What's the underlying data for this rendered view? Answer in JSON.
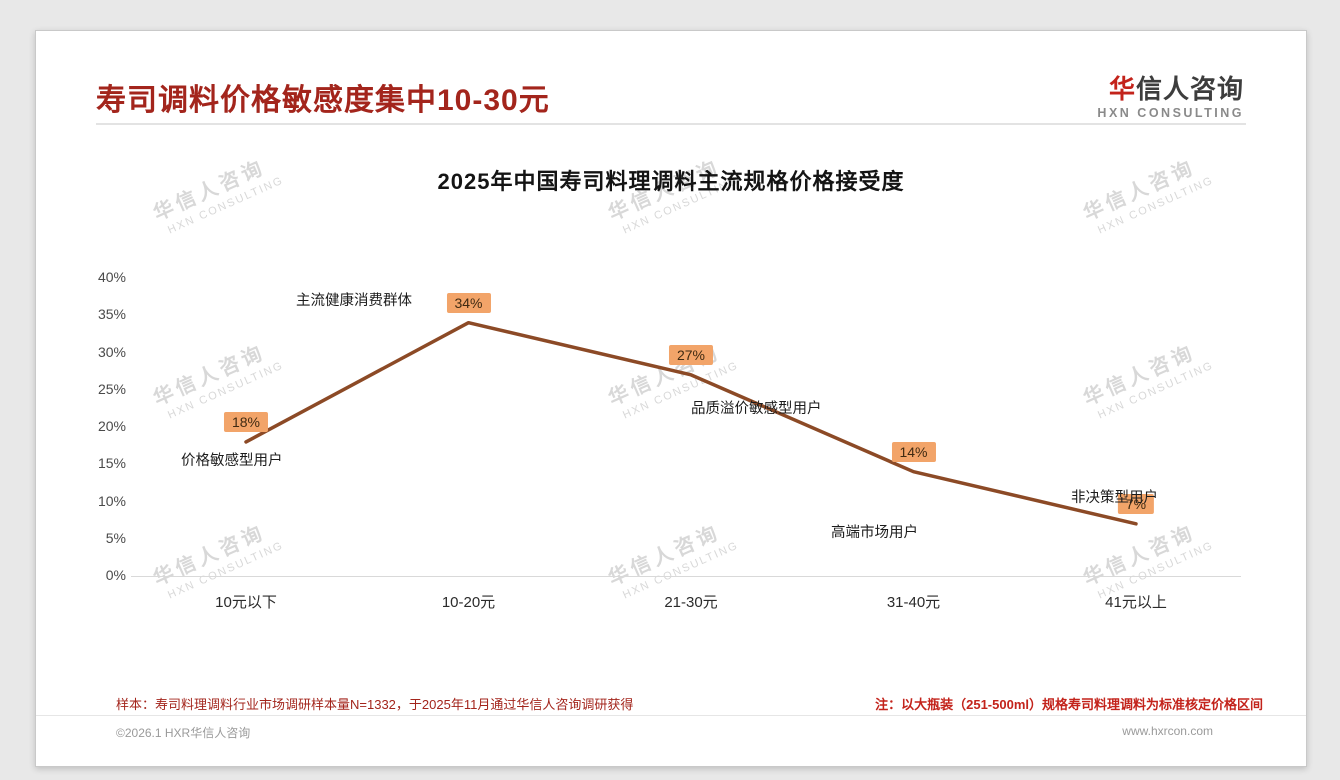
{
  "page": {
    "title": "寿司调料价格敏感度集中10-30元",
    "logo": {
      "cn_accent": "华",
      "cn_rest": "信人咨询",
      "en": "HXN CONSULTING"
    },
    "watermark": {
      "cn": "华信人咨询",
      "en": "HXN CONSULTING"
    },
    "footer": {
      "sample_note": "样本：寿司料理调料行业市场调研样本量N=1332，于2025年11月通过华信人咨询调研获得",
      "price_note": "注：以大瓶装（251-500ml）规格寿司料理调料为标准核定价格区间",
      "copyright": "©2026.1 HXR华信人咨询",
      "website": "www.hxrcon.com"
    }
  },
  "colors": {
    "title_red": "#A3251C",
    "note_red": "#C3231B",
    "line_brown": "#8C4A26",
    "label_bg": "#F2A469",
    "watermark_gray": "#D8D8D8"
  },
  "chart_data": {
    "type": "line",
    "title": "2025年中国寿司料理调料主流规格价格接受度",
    "categories": [
      "10元以下",
      "10-20元",
      "21-30元",
      "31-40元",
      "41元以上"
    ],
    "values": [
      18,
      34,
      27,
      14,
      7
    ],
    "data_labels": [
      "18%",
      "34%",
      "27%",
      "14%",
      "7%"
    ],
    "annotations": [
      "价格敏感型用户",
      "主流健康消费群体",
      "品质溢价敏感型用户",
      "高端市场用户",
      "非决策型用户"
    ],
    "xlabel": "",
    "ylabel": "",
    "ylim": [
      0,
      40
    ],
    "ytick_step": 5,
    "yticks": [
      "0%",
      "5%",
      "10%",
      "15%",
      "20%",
      "25%",
      "30%",
      "35%",
      "40%"
    ],
    "grid": false,
    "legend": false,
    "line_color": "#8C4A26",
    "label_bg": "#F2A469"
  }
}
